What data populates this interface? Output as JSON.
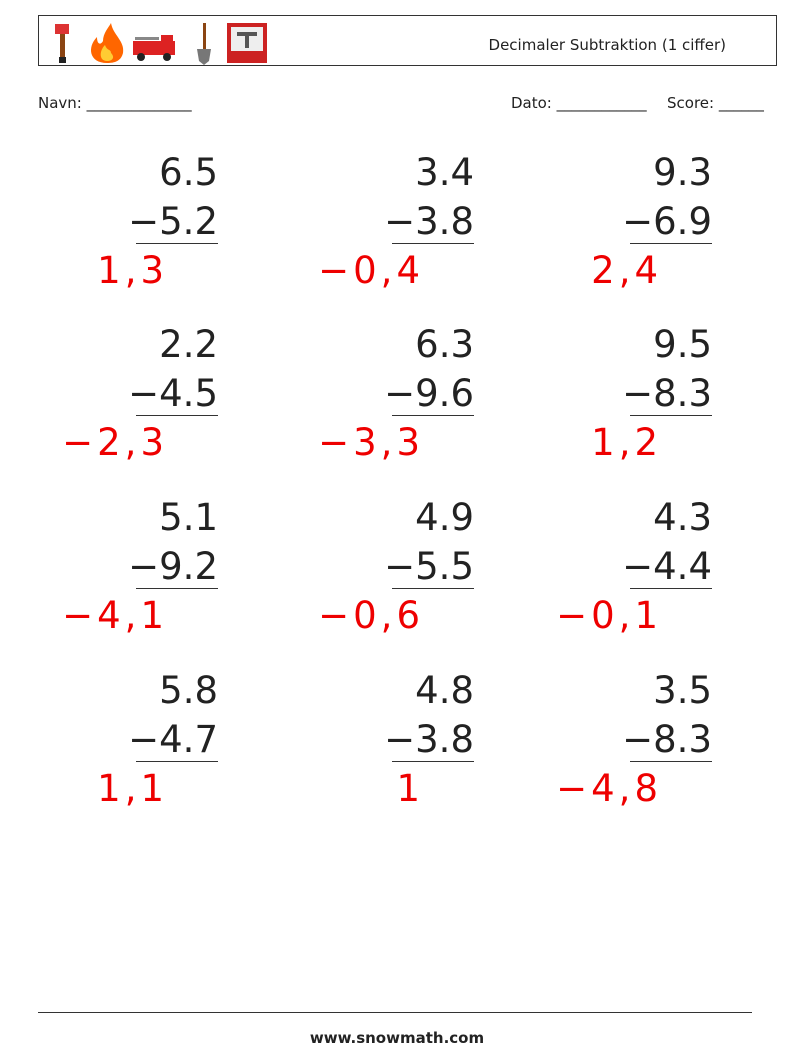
{
  "header": {
    "title": "Decimaler Subtraktion (1 ciffer)"
  },
  "fields": {
    "name": "Navn: ______________",
    "date": "Dato: ____________",
    "score": "Score: ______"
  },
  "problems": [
    {
      "top": "6.5",
      "bottom": "−5.2",
      "answer": "1,3"
    },
    {
      "top": "3.4",
      "bottom": "−3.8",
      "answer": "−0,4"
    },
    {
      "top": "9.3",
      "bottom": "−6.9",
      "answer": "2,4"
    },
    {
      "top": "2.2",
      "bottom": "−4.5",
      "answer": "−2,3"
    },
    {
      "top": "6.3",
      "bottom": "−9.6",
      "answer": "−3,3"
    },
    {
      "top": "9.5",
      "bottom": "−8.3",
      "answer": "1,2"
    },
    {
      "top": "5.1",
      "bottom": "−9.2",
      "answer": "−4,1"
    },
    {
      "top": "4.9",
      "bottom": "−5.5",
      "answer": "−0,6"
    },
    {
      "top": "4.3",
      "bottom": "−4.4",
      "answer": "−0,1"
    },
    {
      "top": "5.8",
      "bottom": "−4.7",
      "answer": "1,1"
    },
    {
      "top": "4.8",
      "bottom": "−3.8",
      "answer": "1"
    },
    {
      "top": "3.5",
      "bottom": "−8.3",
      "answer": "−4,8"
    }
  ],
  "footer": "www.snowmath.com"
}
